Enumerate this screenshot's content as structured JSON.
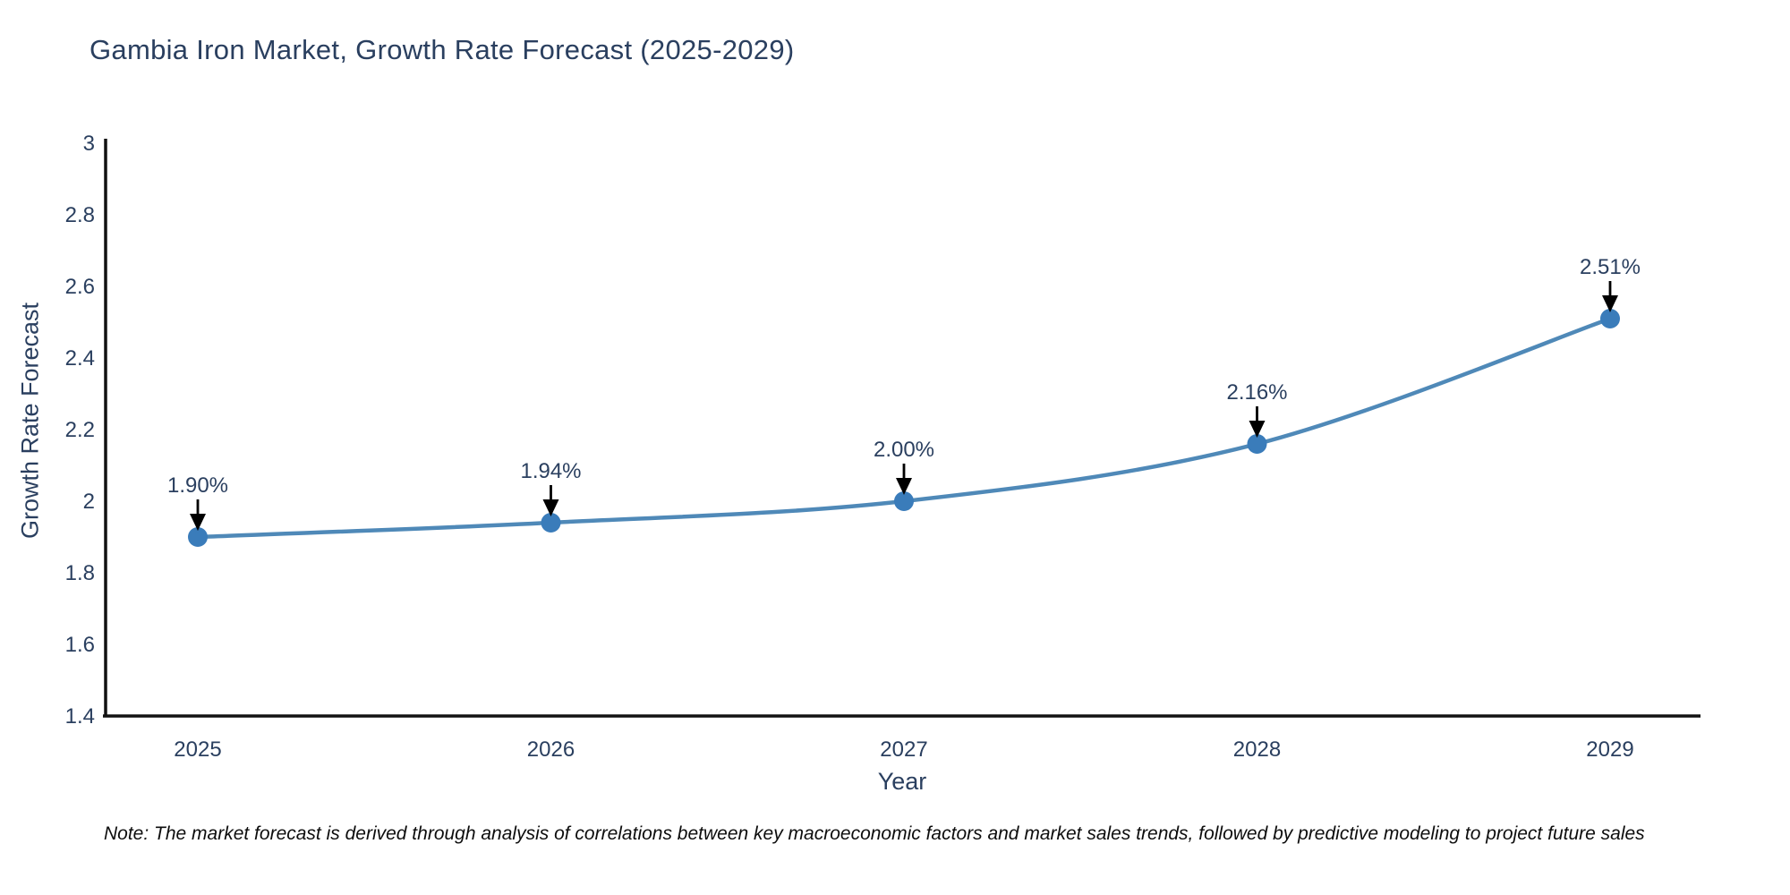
{
  "title": "Gambia Iron Market, Growth Rate Forecast (2025-2029)",
  "note": "Note: The market forecast is derived through analysis of correlations between key macroeconomic factors and market sales trends, followed by predictive modeling to project future sales",
  "chart_data": {
    "type": "line",
    "title": "Gambia Iron Market, Growth Rate Forecast (2025-2029)",
    "xlabel": "Year",
    "ylabel": "Growth Rate Forecast",
    "x": [
      2025,
      2026,
      2027,
      2028,
      2029
    ],
    "categories": [
      "2025",
      "2026",
      "2027",
      "2028",
      "2029"
    ],
    "values": [
      1.9,
      1.94,
      2.0,
      2.16,
      2.51
    ],
    "point_labels": [
      "1.90%",
      "1.94%",
      "2.00%",
      "2.16%",
      "2.51%"
    ],
    "ylim": [
      1.4,
      3.0
    ],
    "ytick_step": 0.2,
    "ytick_labels": [
      "3",
      "2.8",
      "2.6",
      "2.4",
      "2.2",
      "2",
      "1.8",
      "1.6",
      "1.4"
    ],
    "grid": false,
    "legend_position": "none",
    "line_color": "#4f89b8",
    "marker_color": "#3a7cba",
    "axis_color": "#111111",
    "text_color": "#2a3f5f",
    "annotation_color": "#2a3f5f",
    "arrow_color": "#000000"
  }
}
